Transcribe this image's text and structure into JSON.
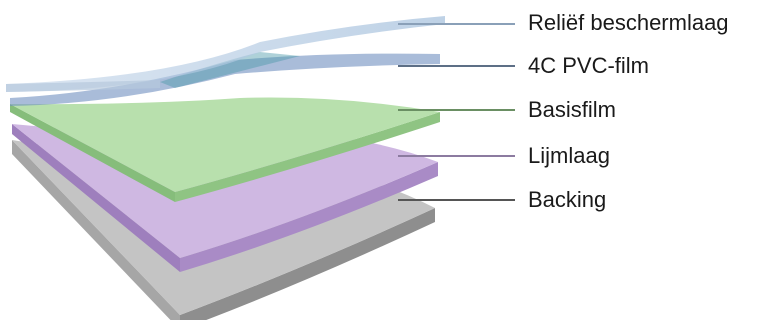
{
  "diagram": {
    "layers": [
      {
        "id": "relief",
        "label": "Reliëf beschermlaag",
        "color": "#9fbad6"
      },
      {
        "id": "pvc",
        "label": "4C PVC-film",
        "color": "#7d99c4"
      },
      {
        "id": "basis",
        "label": "Basisfilm",
        "color": "#b5dfa9"
      },
      {
        "id": "lijm",
        "label": "Lijmlaag",
        "color": "#cbb3df"
      },
      {
        "id": "backing",
        "label": "Backing",
        "color": "#b7b7b7"
      }
    ]
  }
}
